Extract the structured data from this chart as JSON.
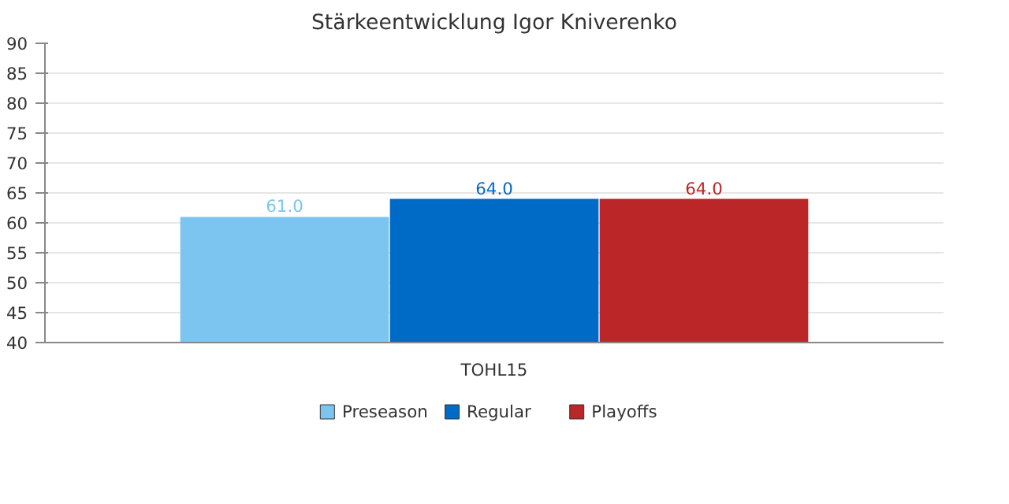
{
  "chart_data": {
    "type": "bar",
    "title": "Stärkeentwicklung Igor Kniverenko",
    "categories": [
      "TOHL15"
    ],
    "series": [
      {
        "name": "Preseason",
        "color": "#7cc5f0",
        "values": [
          61.0
        ],
        "value_labels": [
          "61.0"
        ]
      },
      {
        "name": "Regular",
        "color": "#006bc6",
        "values": [
          64.0
        ],
        "value_labels": [
          "64.0"
        ]
      },
      {
        "name": "Playoffs",
        "color": "#bb2628",
        "values": [
          64.0
        ],
        "value_labels": [
          "64.0"
        ]
      }
    ],
    "ylim": [
      40,
      90
    ],
    "yticks": [
      40,
      45,
      50,
      55,
      60,
      65,
      70,
      75,
      80,
      85,
      90
    ],
    "grid": "y",
    "legend": "bottom"
  }
}
